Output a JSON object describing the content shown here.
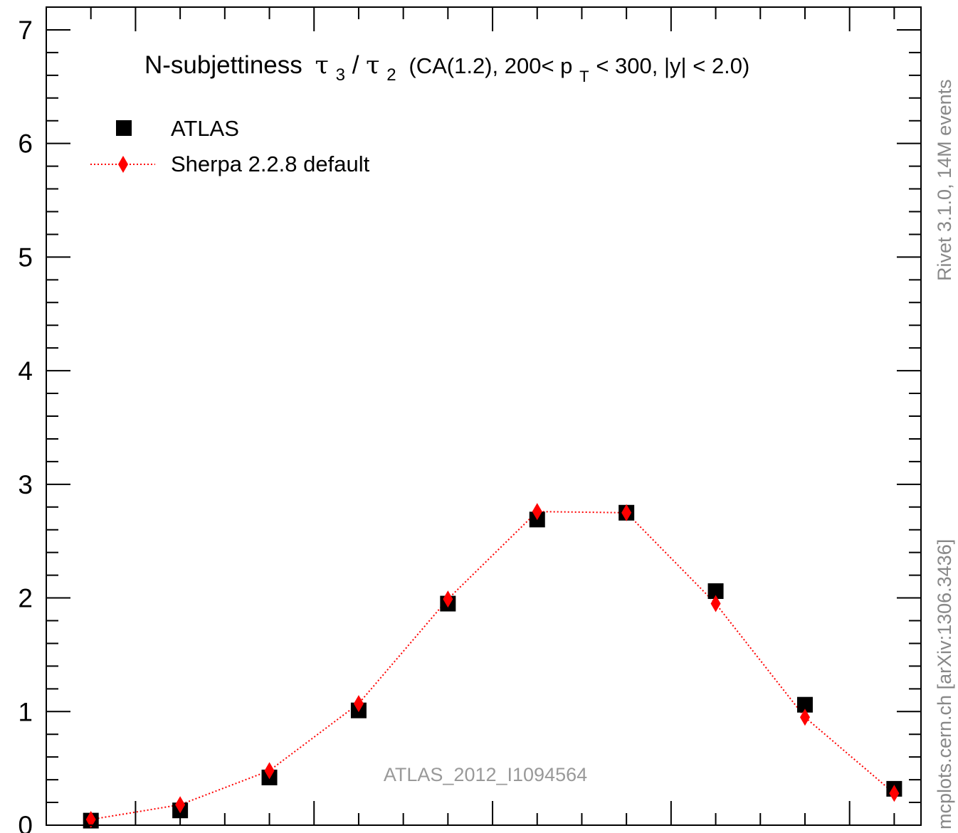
{
  "chart_data": {
    "type": "scatter",
    "title": "N-subjettiness",
    "title_math": {
      "num_symbol": "τ",
      "num_sub": "3",
      "slash": "/",
      "den_symbol": "τ",
      "den_sub": "2"
    },
    "title_cut_text": "(CA(1.2), 200< p",
    "title_cut_sub": "T",
    "title_cut_rest": " < 300, |y| < 2.0)",
    "analysis_label": "ATLAS_2012_I1094564",
    "side_label_top": "Rivet 3.1.0,  14M events",
    "side_label_bottom": "mcplots.cern.ch [arXiv:1306.3436]",
    "ylim": [
      0,
      7.2
    ],
    "xlim": [
      0.1,
      1.08
    ],
    "y_ticks": [
      {
        "value": 0,
        "label": "0"
      },
      {
        "value": 1,
        "label": "1"
      },
      {
        "value": 2,
        "label": "2"
      },
      {
        "value": 3,
        "label": "3"
      },
      {
        "value": 4,
        "label": "4"
      },
      {
        "value": 5,
        "label": "5"
      },
      {
        "value": 6,
        "label": "6"
      },
      {
        "value": 7,
        "label": "7"
      }
    ],
    "legend_position": "top-left",
    "series": [
      {
        "name": "ATLAS",
        "marker": "square",
        "color": "#000000",
        "x": [
          0.15,
          0.25,
          0.35,
          0.45,
          0.55,
          0.65,
          0.75,
          0.85,
          0.95,
          1.05
        ],
        "y": [
          0.04,
          0.13,
          0.42,
          1.01,
          1.95,
          2.69,
          2.75,
          2.06,
          1.06,
          0.32
        ]
      },
      {
        "name": "Sherpa 2.2.8 default",
        "marker": "diamond",
        "line": "dotted",
        "color": "#ff0000",
        "x": [
          0.15,
          0.25,
          0.35,
          0.45,
          0.55,
          0.65,
          0.75,
          0.85,
          0.95,
          1.05
        ],
        "y": [
          0.05,
          0.18,
          0.48,
          1.07,
          1.99,
          2.76,
          2.75,
          1.95,
          0.95,
          0.28
        ]
      }
    ]
  }
}
